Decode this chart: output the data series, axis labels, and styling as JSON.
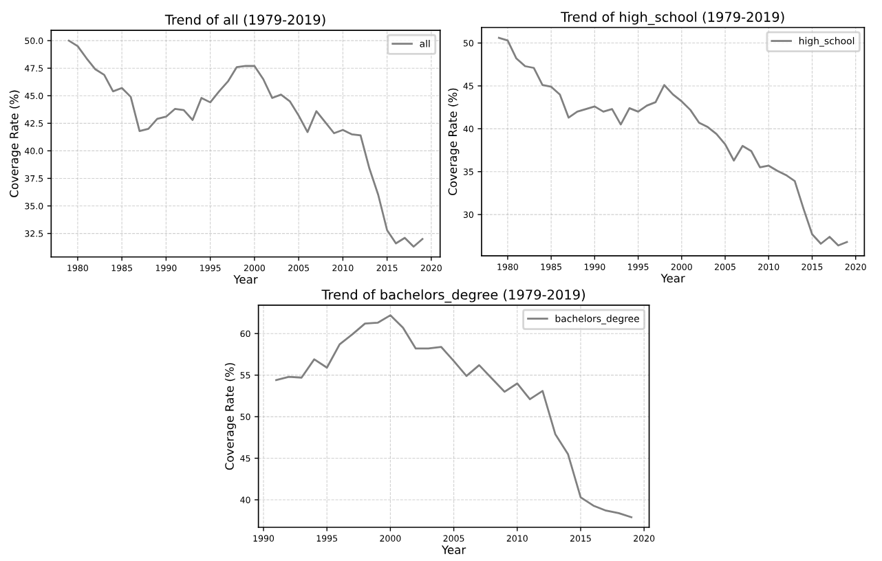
{
  "chart_data": [
    {
      "type": "line",
      "title": "Trend of all (1979-2019)",
      "xlabel": "Year",
      "ylabel": "Coverage Rate (%)",
      "x": [
        1979,
        1980,
        1981,
        1982,
        1983,
        1984,
        1985,
        1986,
        1987,
        1988,
        1989,
        1990,
        1991,
        1992,
        1993,
        1994,
        1995,
        1996,
        1997,
        1998,
        1999,
        2000,
        2001,
        2002,
        2003,
        2004,
        2005,
        2006,
        2007,
        2008,
        2009,
        2010,
        2011,
        2012,
        2013,
        2014,
        2015,
        2016,
        2017,
        2018,
        2019
      ],
      "series": [
        {
          "name": "all",
          "color": "#808080",
          "values": [
            50.0,
            49.5,
            48.4,
            47.4,
            46.9,
            45.4,
            45.7,
            44.9,
            41.8,
            42.0,
            42.9,
            43.1,
            43.8,
            43.7,
            42.8,
            44.8,
            44.4,
            45.4,
            46.3,
            47.6,
            47.7,
            47.7,
            46.5,
            44.8,
            45.1,
            44.5,
            43.2,
            41.7,
            43.6,
            42.6,
            41.6,
            41.9,
            41.5,
            41.4,
            38.4,
            36.0,
            32.8,
            31.6,
            32.1,
            31.3,
            32.0
          ]
        }
      ],
      "xlim": [
        1977,
        2021
      ],
      "xticks": [
        1980,
        1985,
        1990,
        1995,
        2000,
        2005,
        2010,
        2015,
        2020
      ],
      "ylim": [
        30.37,
        50.94
      ],
      "yticks": [
        {
          "value": 32.5,
          "label": "32.5"
        },
        {
          "value": 35,
          "label": "35.0"
        },
        {
          "value": 37.5,
          "label": "37.5"
        },
        {
          "value": 40,
          "label": "40.0"
        },
        {
          "value": 42.5,
          "label": "42.5"
        },
        {
          "value": 45,
          "label": "45.0"
        },
        {
          "value": 47.5,
          "label": "47.5"
        },
        {
          "value": 50,
          "label": "50.0"
        }
      ],
      "grid": true,
      "legend": "top right",
      "marker": "none",
      "line_style": "solid"
    },
    {
      "type": "line",
      "title": "Trend of high_school (1979-2019)",
      "xlabel": "Year",
      "ylabel": "Coverage Rate (%)",
      "x": [
        1979,
        1980,
        1981,
        1982,
        1983,
        1984,
        1985,
        1986,
        1987,
        1988,
        1989,
        1990,
        1991,
        1992,
        1993,
        1994,
        1995,
        1996,
        1997,
        1998,
        1999,
        2000,
        2001,
        2002,
        2003,
        2004,
        2005,
        2006,
        2007,
        2008,
        2009,
        2010,
        2011,
        2012,
        2013,
        2014,
        2015,
        2016,
        2017,
        2018,
        2019
      ],
      "series": [
        {
          "name": "high_school",
          "color": "#808080",
          "values": [
            50.6,
            50.3,
            48.2,
            47.3,
            47.1,
            45.1,
            44.9,
            44.0,
            41.3,
            42.0,
            42.3,
            42.6,
            42.0,
            42.3,
            40.5,
            42.4,
            42.0,
            42.7,
            43.1,
            45.1,
            44.0,
            43.2,
            42.2,
            40.7,
            40.2,
            39.4,
            38.2,
            36.3,
            38.0,
            37.4,
            35.5,
            35.7,
            35.1,
            34.6,
            33.9,
            30.7,
            27.7,
            26.6,
            27.4,
            26.4,
            26.8
          ]
        }
      ],
      "xlim": [
        1977,
        2021
      ],
      "xticks": [
        1980,
        1985,
        1990,
        1995,
        2000,
        2005,
        2010,
        2015,
        2020
      ],
      "ylim": [
        25.19,
        51.81
      ],
      "yticks": [
        30,
        35,
        40,
        45,
        50
      ],
      "grid": true,
      "legend": "top right",
      "marker": "none",
      "line_style": "solid"
    },
    {
      "type": "line",
      "title": "Trend of bachelors_degree (1979-2019)",
      "xlabel": "Year",
      "ylabel": "Coverage Rate (%)",
      "x": [
        1991,
        1992,
        1993,
        1994,
        1995,
        1996,
        1997,
        1998,
        1999,
        2000,
        2001,
        2002,
        2003,
        2004,
        2005,
        2006,
        2007,
        2008,
        2009,
        2010,
        2011,
        2012,
        2013,
        2014,
        2015,
        2016,
        2017,
        2018,
        2019
      ],
      "series": [
        {
          "name": "bachelors_degree",
          "color": "#808080",
          "values": [
            54.4,
            54.8,
            54.7,
            56.9,
            55.9,
            58.7,
            59.9,
            61.2,
            61.3,
            62.2,
            60.7,
            58.2,
            58.2,
            58.4,
            56.7,
            54.9,
            56.2,
            54.6,
            53.0,
            54.0,
            52.1,
            53.1,
            47.9,
            45.5,
            40.3,
            39.3,
            38.7,
            38.4,
            37.9
          ]
        }
      ],
      "xlim": [
        1989.6,
        2020.4
      ],
      "xticks": [
        1990,
        1995,
        2000,
        2005,
        2010,
        2015,
        2020
      ],
      "ylim": [
        36.685,
        63.415
      ],
      "yticks": [
        40,
        45,
        50,
        55,
        60
      ],
      "grid": true,
      "legend": "top right",
      "marker": "none",
      "line_style": "solid"
    }
  ]
}
